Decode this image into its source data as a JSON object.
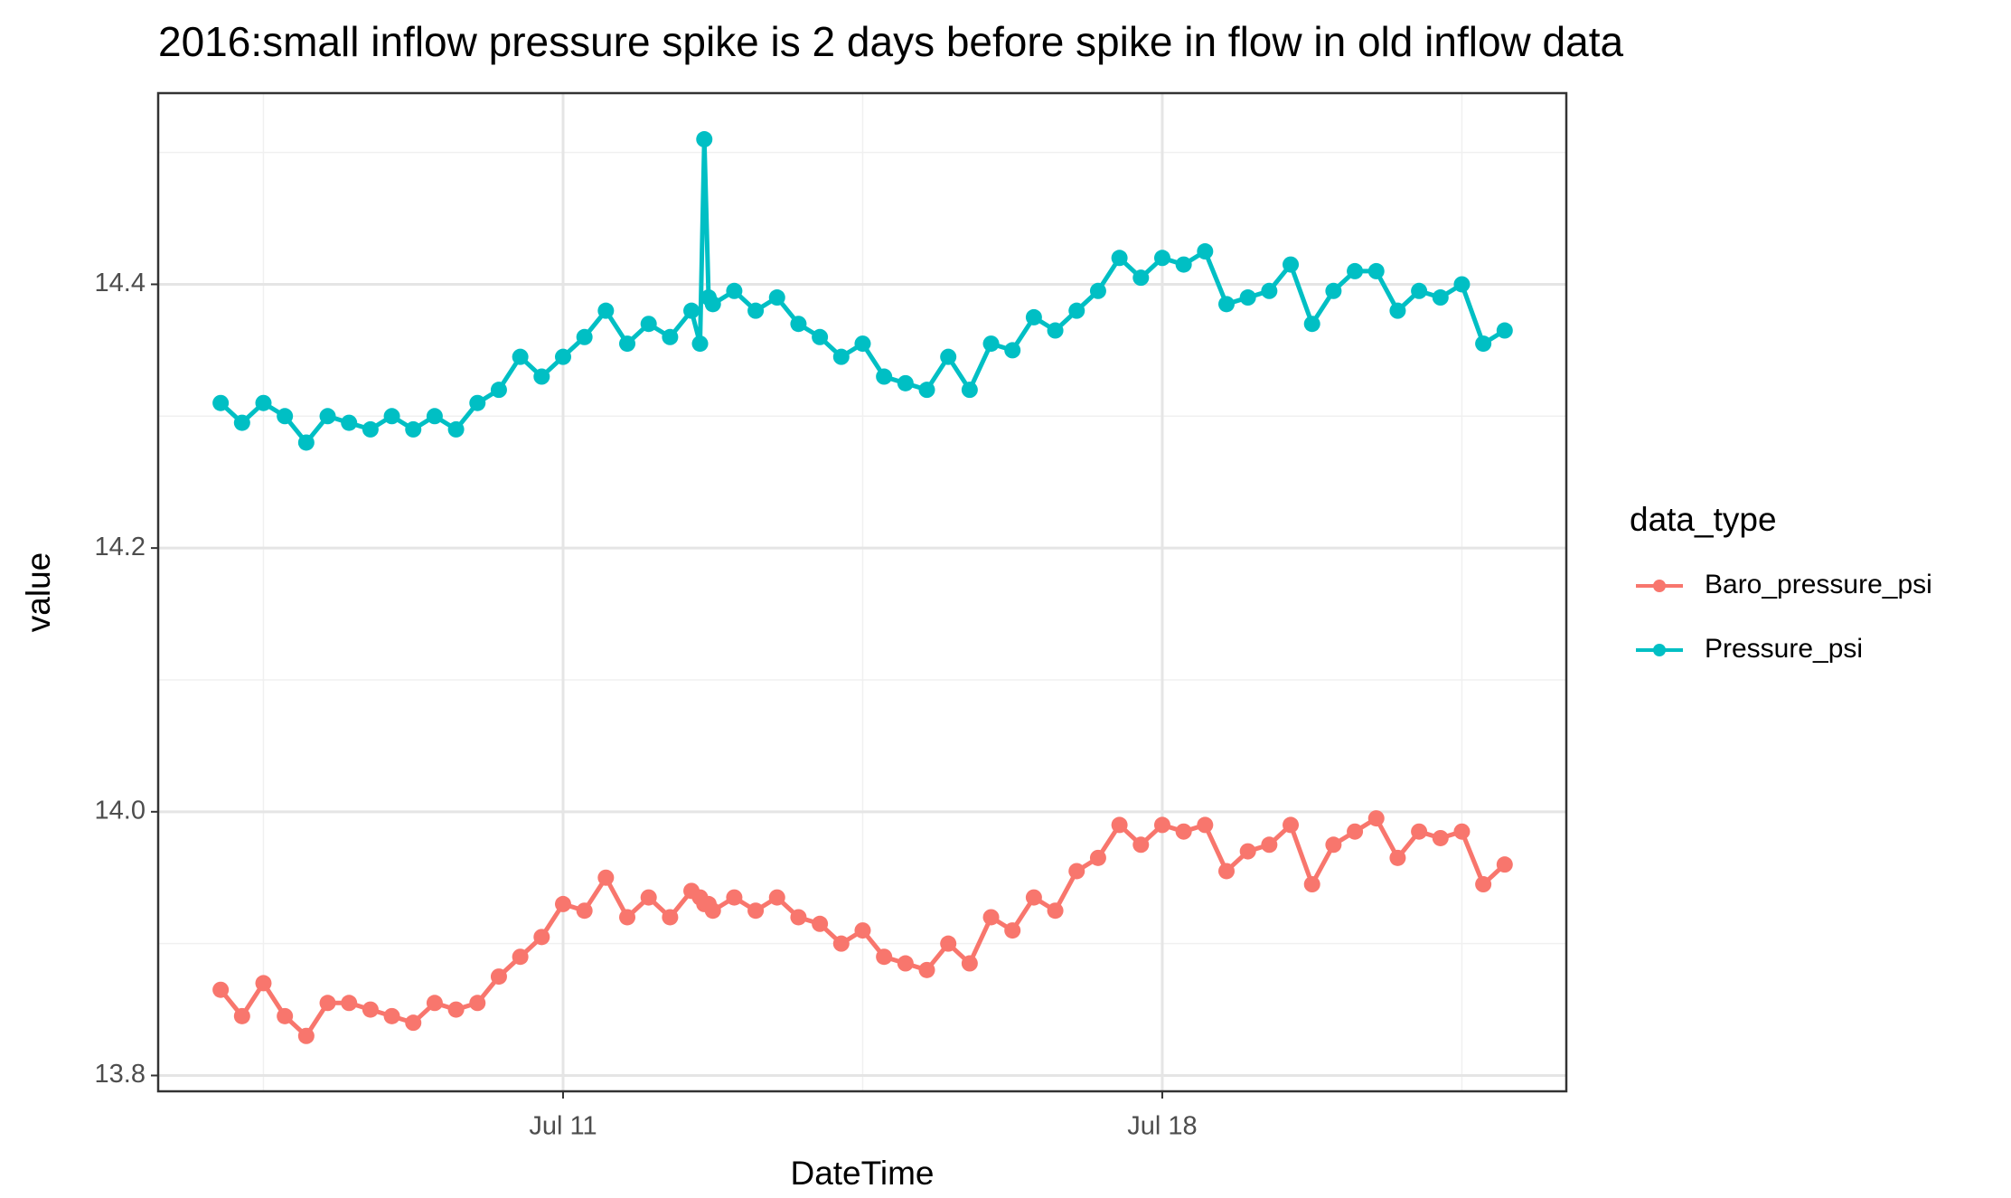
{
  "chart_data": {
    "type": "line",
    "title": "2016:small inflow pressure spike is 2 days before spike in flow in old inflow data",
    "x_label": "DateTime",
    "y_label": "value",
    "legend_title": "data_type",
    "legend_position": "right",
    "grid": true,
    "x": [
      7.0,
      7.25,
      7.5,
      7.75,
      8.0,
      8.25,
      8.5,
      8.75,
      9.0,
      9.25,
      9.5,
      9.75,
      10.0,
      10.25,
      10.5,
      10.75,
      11.0,
      11.25,
      11.5,
      11.75,
      12.0,
      12.25,
      12.5,
      12.6,
      12.65,
      12.7,
      12.75,
      13.0,
      13.25,
      13.5,
      13.75,
      14.0,
      14.25,
      14.5,
      14.75,
      15.0,
      15.25,
      15.5,
      15.75,
      16.0,
      16.25,
      16.5,
      16.75,
      17.0,
      17.25,
      17.5,
      17.75,
      18.0,
      18.25,
      18.5,
      18.75,
      19.0,
      19.25,
      19.5,
      19.75,
      20.0,
      20.25,
      20.5,
      20.75,
      21.0,
      21.25,
      21.5,
      21.75,
      22.0
    ],
    "series": [
      {
        "name": "Baro_pressure_psi",
        "color": "#F8766D",
        "values": [
          13.865,
          13.845,
          13.87,
          13.845,
          13.83,
          13.855,
          13.855,
          13.85,
          13.845,
          13.84,
          13.855,
          13.85,
          13.855,
          13.875,
          13.89,
          13.905,
          13.93,
          13.925,
          13.95,
          13.92,
          13.935,
          13.92,
          13.94,
          13.935,
          13.93,
          13.93,
          13.925,
          13.935,
          13.925,
          13.935,
          13.92,
          13.915,
          13.9,
          13.91,
          13.89,
          13.885,
          13.88,
          13.9,
          13.885,
          13.92,
          13.91,
          13.935,
          13.925,
          13.955,
          13.965,
          13.99,
          13.975,
          13.99,
          13.985,
          13.99,
          13.955,
          13.97,
          13.975,
          13.99,
          13.945,
          13.975,
          13.985,
          13.995,
          13.965,
          13.985,
          13.98,
          13.985,
          13.945,
          13.96
        ]
      },
      {
        "name": "Pressure_psi",
        "color": "#00BFC4",
        "values": [
          14.31,
          14.295,
          14.31,
          14.3,
          14.28,
          14.3,
          14.295,
          14.29,
          14.3,
          14.29,
          14.3,
          14.29,
          14.31,
          14.32,
          14.345,
          14.33,
          14.345,
          14.36,
          14.38,
          14.355,
          14.37,
          14.36,
          14.38,
          14.355,
          14.51,
          14.39,
          14.385,
          14.395,
          14.38,
          14.39,
          14.37,
          14.36,
          14.345,
          14.355,
          14.33,
          14.325,
          14.32,
          14.345,
          14.32,
          14.355,
          14.35,
          14.375,
          14.365,
          14.38,
          14.395,
          14.42,
          14.405,
          14.42,
          14.415,
          14.425,
          14.385,
          14.39,
          14.395,
          14.415,
          14.37,
          14.395,
          14.41,
          14.41,
          14.38,
          14.395,
          14.39,
          14.4,
          14.355,
          14.365
        ]
      }
    ],
    "xlim": [
      6.27,
      22.72
    ],
    "xticks": [
      {
        "value": 11,
        "label": "Jul 11"
      },
      {
        "value": 18,
        "label": "Jul 18"
      }
    ],
    "xminorticks": [
      7.5,
      14.5,
      21.5
    ],
    "ylim": [
      13.788,
      14.545
    ],
    "yticks": [
      13.8,
      {
        "value": 14,
        "label": "14.0"
      },
      14.2,
      14.4
    ],
    "yminorticks": [
      13.9,
      14.1,
      14.3,
      14.5
    ]
  }
}
